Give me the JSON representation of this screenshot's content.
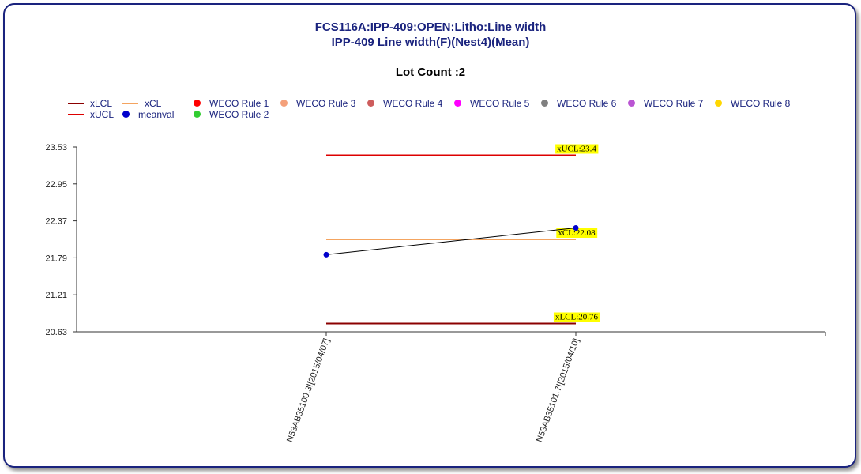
{
  "title_line1": "FCS116A:IPP-409:OPEN:Litho:Line width",
  "title_line2": "IPP-409 Line width(F)(Nest4)(Mean)",
  "lot_count": "Lot Count :2",
  "legend": [
    {
      "label": "xLCL",
      "kind": "line",
      "color": "#8b0000"
    },
    {
      "label": "xCL",
      "kind": "line",
      "color": "#f4a460"
    },
    {
      "label": "WECO Rule 1",
      "kind": "dot",
      "color": "#ff0000"
    },
    {
      "label": "WECO Rule 3",
      "kind": "dot",
      "color": "#f4a07a"
    },
    {
      "label": "WECO Rule 4",
      "kind": "dot",
      "color": "#cd5c5c"
    },
    {
      "label": "WECO Rule 5",
      "kind": "dot",
      "color": "#ff00ff"
    },
    {
      "label": "WECO Rule 6",
      "kind": "dot",
      "color": "#808080"
    },
    {
      "label": "WECO Rule 7",
      "kind": "dot",
      "color": "#ba55d3"
    },
    {
      "label": "WECO Rule 8",
      "kind": "dot",
      "color": "#ffd700"
    },
    {
      "label": "xUCL",
      "kind": "line",
      "color": "#dd0000"
    },
    {
      "label": "meanval",
      "kind": "dot",
      "color": "#0000cc"
    },
    {
      "label": "WECO Rule 2",
      "kind": "dot",
      "color": "#32cd32"
    }
  ],
  "chart_data": {
    "type": "line",
    "categories": [
      "N53AB35100.3I[2015/04/07]",
      "N53AB35101.7I[2015/04/10]"
    ],
    "series": [
      {
        "name": "meanval",
        "values": [
          21.84,
          22.26
        ],
        "color": "#0000cc"
      }
    ],
    "limits": [
      {
        "name": "xUCL",
        "value": 23.4,
        "label": "xUCL:23.4",
        "color": "#dd0000"
      },
      {
        "name": "xCL",
        "value": 22.08,
        "label": "xCL:22.08",
        "color": "#f4a460"
      },
      {
        "name": "xLCL",
        "value": 20.76,
        "label": "xLCL:20.76",
        "color": "#8b0000"
      }
    ],
    "y_ticks": [
      "23.53",
      "22.95",
      "22.37",
      "21.79",
      "21.21",
      "20.63"
    ],
    "ylim": [
      20.63,
      23.53
    ],
    "grid": false
  }
}
